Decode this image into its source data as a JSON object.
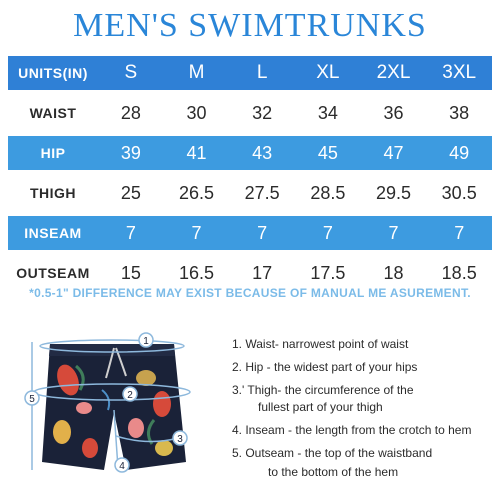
{
  "title": "MEN'S SWIMTRUNKS",
  "table": {
    "header": {
      "label": "UNITS(IN)",
      "values": [
        "S",
        "M",
        "L",
        "XL",
        "2XL",
        "3XL"
      ]
    },
    "rows": [
      {
        "label": "WAIST",
        "values": [
          "28",
          "30",
          "32",
          "34",
          "36",
          "38"
        ]
      },
      {
        "label": "HIP",
        "values": [
          "39",
          "41",
          "43",
          "45",
          "47",
          "49"
        ]
      },
      {
        "label": "THIGH",
        "values": [
          "25",
          "26.5",
          "27.5",
          "28.5",
          "29.5",
          "30.5"
        ]
      },
      {
        "label": "INSEAM",
        "values": [
          "7",
          "7",
          "7",
          "7",
          "7",
          "7"
        ]
      },
      {
        "label": "OUTSEAM",
        "values": [
          "15",
          "16.5",
          "17",
          "17.5",
          "18",
          "18.5"
        ]
      }
    ]
  },
  "note": "*0.5-1\" DIFFERENCE MAY EXIST BECAUSE OF MANUAL ME ASUREMENT.",
  "figure_markers": [
    "1",
    "2",
    "3",
    "4",
    "5"
  ],
  "legend": [
    "1. Waist- narrowest point of waist",
    "2. Hip - the widest part of your hips",
    "3.' Thigh- the circumference of the",
    "fullest part of your thigh",
    "4. Inseam - the length from the crotch to hem",
    "5. Outseam - the top of the waistband",
    "to the bottom of the hem"
  ],
  "colors": {
    "title": "#2a86d8",
    "header": "#2f80d6",
    "band": "#3d9be0",
    "note": "#7bbbe8",
    "shorts": "#1a2238"
  }
}
